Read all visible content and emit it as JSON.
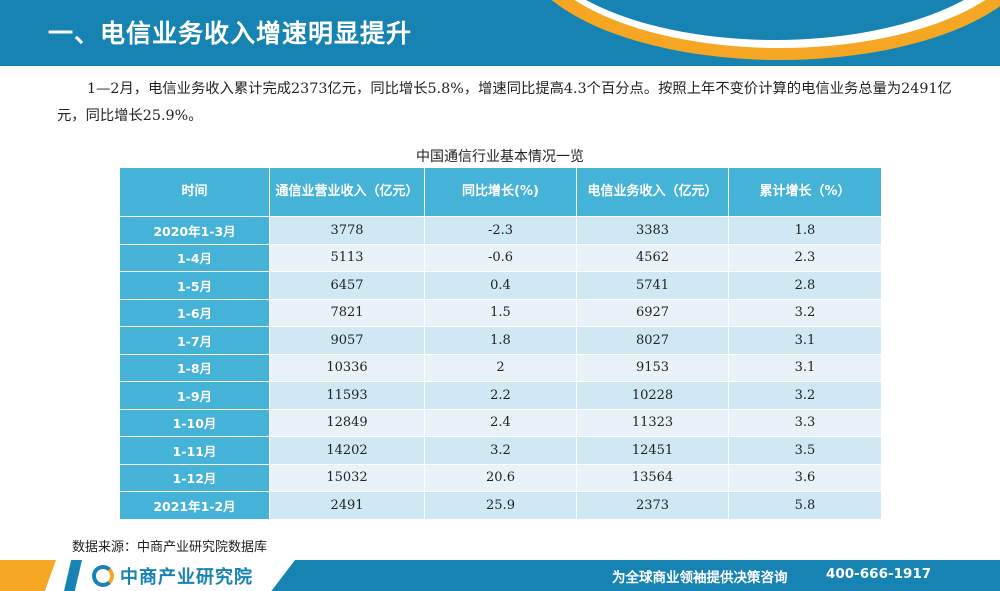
{
  "header": {
    "title": "一、电信业务收入增速明显提升"
  },
  "intro": "1—2月，电信业务收入累计完成2373亿元，同比增长5.8%，增速同比提高4.3个百分点。按照上年不变价计算的电信业务总量为2491亿元，同比增长25.9%。",
  "table": {
    "caption": "中国通信行业基本情况一览",
    "headers": [
      "时间",
      "通信业营业收入（亿元）",
      "同比增长(%)",
      "电信业务收入（亿元）",
      "累计增长（%）"
    ],
    "rows": [
      [
        "2020年1-3月",
        "3778",
        "-2.3",
        "3383",
        "1.8"
      ],
      [
        "1-4月",
        "5113",
        "-0.6",
        "4562",
        "2.3"
      ],
      [
        "1-5月",
        "6457",
        "0.4",
        "5741",
        "2.8"
      ],
      [
        "1-6月",
        "7821",
        "1.5",
        "6927",
        "3.2"
      ],
      [
        "1-7月",
        "9057",
        "1.8",
        "8027",
        "3.1"
      ],
      [
        "1-8月",
        "10336",
        "2",
        "9153",
        "3.1"
      ],
      [
        "1-9月",
        "11593",
        "2.2",
        "10228",
        "3.2"
      ],
      [
        "1-10月",
        "12849",
        "2.4",
        "11323",
        "3.3"
      ],
      [
        "1-11月",
        "14202",
        "3.2",
        "12451",
        "3.5"
      ],
      [
        "1-12月",
        "15032",
        "20.6",
        "13564",
        "3.6"
      ],
      [
        "2021年1-2月",
        "2491",
        "25.9",
        "2373",
        "5.8"
      ]
    ]
  },
  "source": "数据来源：中商产业研究院数据库",
  "footer": {
    "logo_text": "中商产业研究院",
    "slogan": "为全球商业领袖提供决策咨询",
    "phone": "400-666-1917"
  },
  "colors": {
    "primary_blue": "#1683b3",
    "table_header": "#45b2d7",
    "accent_orange": "#f5a623"
  }
}
